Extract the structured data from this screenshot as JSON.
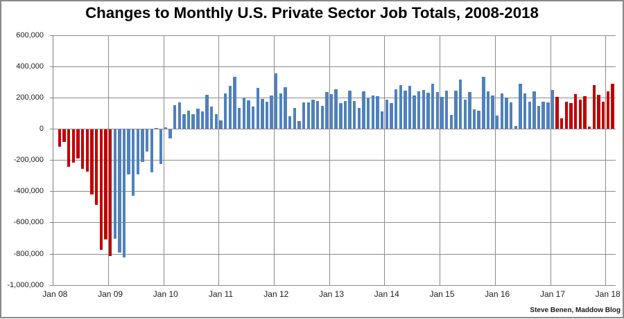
{
  "title": "Changes to Monthly U.S. Private Sector Job Totals, 2008-2018",
  "credit": "Steve Benen, Maddow Blog",
  "colors": {
    "republican_bar": "#c00000",
    "democrat_bar": "#4f81bd",
    "gridline": "#909090",
    "text": "#1a1a1a",
    "background": "#ffffff"
  },
  "chart_data": {
    "type": "bar",
    "title": "Changes to Monthly U.S. Private Sector Job Totals, 2008-2018",
    "xlabel": "",
    "ylabel": "",
    "units": "jobs per month",
    "ylim": [
      -1000000,
      600000
    ],
    "y_tick_step": 200000,
    "grid": true,
    "legend": false,
    "y_tick_labels": [
      "600,000",
      "400,000",
      "200,000",
      "0",
      "-200,000",
      "-400,000",
      "-600,000",
      "-800,000",
      "-1,000,000"
    ],
    "x_tick_labels": [
      "Jan 08",
      "Jan 09",
      "Jan 10",
      "Jan 11",
      "Jan 12",
      "Jan 13",
      "Jan 14",
      "Jan 15",
      "Jan 16",
      "Jan 17",
      "Jan 18"
    ],
    "series_note": "each point: [month, job_change, party_color R=red/Bush-Trump D=blue/Obama]",
    "points": [
      [
        "Jan 2008",
        0,
        "R"
      ],
      [
        "Feb 2008",
        -110000,
        "R"
      ],
      [
        "Mar 2008",
        -80000,
        "R"
      ],
      [
        "Apr 2008",
        -240000,
        "R"
      ],
      [
        "May 2008",
        -215000,
        "R"
      ],
      [
        "Jun 2008",
        -185000,
        "R"
      ],
      [
        "Jul 2008",
        -252000,
        "R"
      ],
      [
        "Aug 2008",
        -272000,
        "R"
      ],
      [
        "Sep 2008",
        -415000,
        "R"
      ],
      [
        "Oct 2008",
        -485000,
        "R"
      ],
      [
        "Nov 2008",
        -770000,
        "R"
      ],
      [
        "Dec 2008",
        -705000,
        "R"
      ],
      [
        "Jan 2009",
        -810000,
        "R"
      ],
      [
        "Feb 2009",
        -700000,
        "D"
      ],
      [
        "Mar 2009",
        -790000,
        "D"
      ],
      [
        "Apr 2009",
        -820000,
        "D"
      ],
      [
        "May 2009",
        -290000,
        "D"
      ],
      [
        "Jun 2009",
        -425000,
        "D"
      ],
      [
        "Jul 2009",
        -287000,
        "D"
      ],
      [
        "Aug 2009",
        -210000,
        "D"
      ],
      [
        "Sep 2009",
        -140000,
        "D"
      ],
      [
        "Oct 2009",
        -275000,
        "D"
      ],
      [
        "Nov 2009",
        5000,
        "D"
      ],
      [
        "Dec 2009",
        -223000,
        "D"
      ],
      [
        "Jan 2010",
        9000,
        "D"
      ],
      [
        "Feb 2010",
        -59000,
        "D"
      ],
      [
        "Mar 2010",
        149000,
        "D"
      ],
      [
        "Apr 2010",
        168000,
        "D"
      ],
      [
        "May 2010",
        92000,
        "D"
      ],
      [
        "Jun 2010",
        114000,
        "D"
      ],
      [
        "Jul 2010",
        93000,
        "D"
      ],
      [
        "Aug 2010",
        130000,
        "D"
      ],
      [
        "Sep 2010",
        110000,
        "D"
      ],
      [
        "Oct 2010",
        215000,
        "D"
      ],
      [
        "Nov 2010",
        141000,
        "D"
      ],
      [
        "Dec 2010",
        94000,
        "D"
      ],
      [
        "Jan 2011",
        55000,
        "D"
      ],
      [
        "Feb 2011",
        225000,
        "D"
      ],
      [
        "Mar 2011",
        275000,
        "D"
      ],
      [
        "Apr 2011",
        332000,
        "D"
      ],
      [
        "May 2011",
        135000,
        "D"
      ],
      [
        "Jun 2011",
        199000,
        "D"
      ],
      [
        "Jul 2011",
        183000,
        "D"
      ],
      [
        "Aug 2011",
        140000,
        "D"
      ],
      [
        "Sep 2011",
        263000,
        "D"
      ],
      [
        "Oct 2011",
        190000,
        "D"
      ],
      [
        "Nov 2011",
        171000,
        "D"
      ],
      [
        "Dec 2011",
        214000,
        "D"
      ],
      [
        "Jan 2012",
        355000,
        "D"
      ],
      [
        "Feb 2012",
        227000,
        "D"
      ],
      [
        "Mar 2012",
        264000,
        "D"
      ],
      [
        "Apr 2012",
        80000,
        "D"
      ],
      [
        "May 2012",
        132000,
        "D"
      ],
      [
        "Jun 2012",
        47000,
        "D"
      ],
      [
        "Jul 2012",
        170000,
        "D"
      ],
      [
        "Aug 2012",
        167000,
        "D"
      ],
      [
        "Sep 2012",
        184000,
        "D"
      ],
      [
        "Oct 2012",
        175000,
        "D"
      ],
      [
        "Nov 2012",
        146000,
        "D"
      ],
      [
        "Dec 2012",
        233000,
        "D"
      ],
      [
        "Jan 2013",
        223000,
        "D"
      ],
      [
        "Feb 2013",
        253000,
        "D"
      ],
      [
        "Mar 2013",
        166000,
        "D"
      ],
      [
        "Apr 2013",
        178000,
        "D"
      ],
      [
        "May 2013",
        245000,
        "D"
      ],
      [
        "Jun 2013",
        179000,
        "D"
      ],
      [
        "Jul 2013",
        132000,
        "D"
      ],
      [
        "Aug 2013",
        238000,
        "D"
      ],
      [
        "Sep 2013",
        195000,
        "D"
      ],
      [
        "Oct 2013",
        211000,
        "D"
      ],
      [
        "Nov 2013",
        207000,
        "D"
      ],
      [
        "Dec 2013",
        110000,
        "D"
      ],
      [
        "Jan 2014",
        184000,
        "D"
      ],
      [
        "Feb 2014",
        166000,
        "D"
      ],
      [
        "Mar 2014",
        252000,
        "D"
      ],
      [
        "Apr 2014",
        281000,
        "D"
      ],
      [
        "May 2014",
        245000,
        "D"
      ],
      [
        "Jun 2014",
        274000,
        "D"
      ],
      [
        "Jul 2014",
        211000,
        "D"
      ],
      [
        "Aug 2014",
        239000,
        "D"
      ],
      [
        "Sep 2014",
        249000,
        "D"
      ],
      [
        "Oct 2014",
        231000,
        "D"
      ],
      [
        "Nov 2014",
        290000,
        "D"
      ],
      [
        "Dec 2014",
        233000,
        "D"
      ],
      [
        "Jan 2015",
        203000,
        "D"
      ],
      [
        "Feb 2015",
        245000,
        "D"
      ],
      [
        "Mar 2015",
        89000,
        "D"
      ],
      [
        "Apr 2015",
        245000,
        "D"
      ],
      [
        "May 2015",
        313000,
        "D"
      ],
      [
        "Jun 2015",
        187000,
        "D"
      ],
      [
        "Jul 2015",
        233000,
        "D"
      ],
      [
        "Aug 2015",
        124000,
        "D"
      ],
      [
        "Sep 2015",
        115000,
        "D"
      ],
      [
        "Oct 2015",
        332000,
        "D"
      ],
      [
        "Nov 2015",
        238000,
        "D"
      ],
      [
        "Dec 2015",
        214000,
        "D"
      ],
      [
        "Jan 2016",
        85000,
        "D"
      ],
      [
        "Feb 2016",
        227000,
        "D"
      ],
      [
        "Mar 2016",
        198000,
        "D"
      ],
      [
        "Apr 2016",
        167000,
        "D"
      ],
      [
        "May 2016",
        17000,
        "D"
      ],
      [
        "Jun 2016",
        286000,
        "D"
      ],
      [
        "Jul 2016",
        228000,
        "D"
      ],
      [
        "Aug 2016",
        171000,
        "D"
      ],
      [
        "Sep 2016",
        238000,
        "D"
      ],
      [
        "Oct 2016",
        144000,
        "D"
      ],
      [
        "Nov 2016",
        172000,
        "D"
      ],
      [
        "Dec 2016",
        170000,
        "D"
      ],
      [
        "Jan 2017",
        249000,
        "D"
      ],
      [
        "Feb 2017",
        202000,
        "R"
      ],
      [
        "Mar 2017",
        67000,
        "R"
      ],
      [
        "Apr 2017",
        171000,
        "R"
      ],
      [
        "May 2017",
        163000,
        "R"
      ],
      [
        "Jun 2017",
        220000,
        "R"
      ],
      [
        "Jul 2017",
        186000,
        "R"
      ],
      [
        "Aug 2017",
        208000,
        "R"
      ],
      [
        "Sep 2017",
        14000,
        "R"
      ],
      [
        "Oct 2017",
        278000,
        "R"
      ],
      [
        "Nov 2017",
        215000,
        "R"
      ],
      [
        "Dec 2017",
        173000,
        "R"
      ],
      [
        "Jan 2018",
        238000,
        "R"
      ],
      [
        "Feb 2018",
        287000,
        "R"
      ]
    ]
  }
}
